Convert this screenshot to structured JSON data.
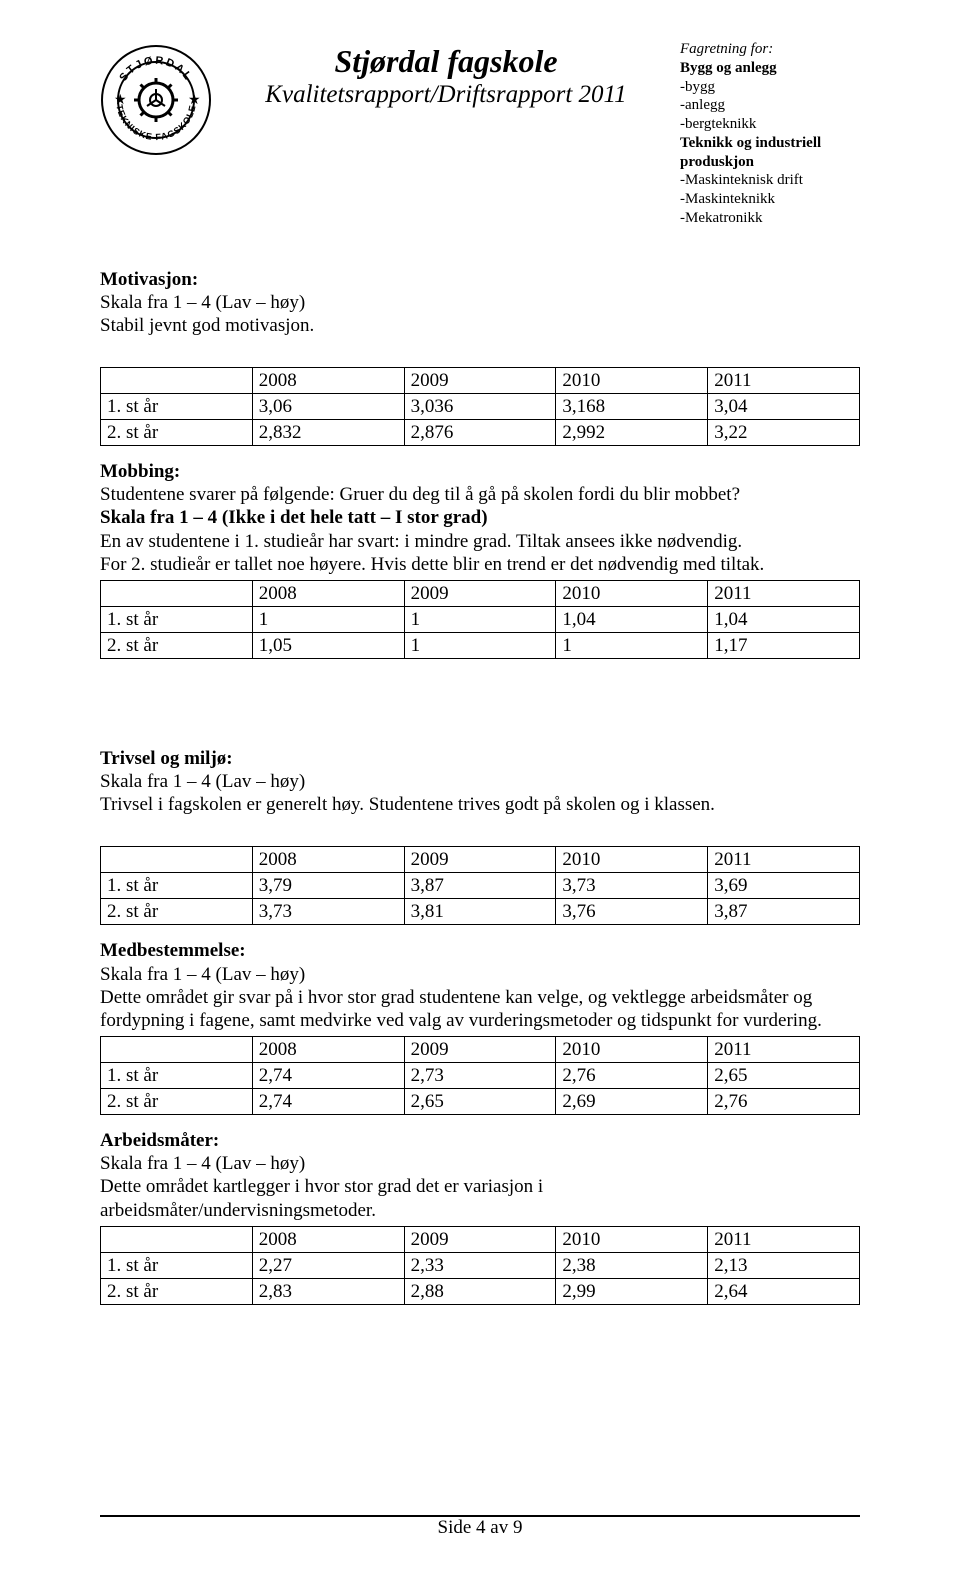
{
  "header": {
    "title": "Stjørdal fagskole",
    "subtitle": "Kvalitetsrapport/Driftsrapport 2011",
    "logo": {
      "top_text": "STJØRDAL",
      "bottom_text": "TEKNISKE FAGSKOLE"
    },
    "right": {
      "line1": "Fagretning  for:",
      "line2": "Bygg og anlegg",
      "line3": "-bygg",
      "line4": "-anlegg",
      "line5": "-bergteknikk",
      "line6": "Teknikk og industriell",
      "line7": "produskjon",
      "line8": "-Maskinteknisk drift",
      "line9": "-Maskinteknikk",
      "line10": "-Mekatronikk"
    }
  },
  "motivasjon": {
    "title": "Motivasjon:",
    "scale": "Skala fra 1 – 4 (Lav – høy)",
    "line": "Stabil jevnt god motivasjon.",
    "table": {
      "columns": [
        "",
        "2008",
        "2009",
        "2010",
        "2011"
      ],
      "rows": [
        [
          "1. st år",
          "3,06",
          "3,036",
          "3,168",
          "3,04"
        ],
        [
          "2. st år",
          "2,832",
          "2,876",
          "2,992",
          "3,22"
        ]
      ]
    }
  },
  "mobbing": {
    "title": "Mobbing:",
    "line1": "Studentene svarer på følgende: Gruer du deg til å gå på skolen fordi du blir mobbet?",
    "line2": "Skala fra 1 – 4 (Ikke i det hele tatt – I stor grad)",
    "line3": "En av studentene i 1. studieår har svart: i mindre grad. Tiltak ansees ikke nødvendig.",
    "line4": "For 2. studieår er tallet noe høyere. Hvis dette blir en trend er det nødvendig med tiltak.",
    "table": {
      "columns": [
        "",
        "2008",
        "2009",
        "2010",
        "2011"
      ],
      "rows": [
        [
          "1. st år",
          "1",
          "1",
          "1,04",
          "1,04"
        ],
        [
          "2. st år",
          "1,05",
          "1",
          "1",
          "1,17"
        ]
      ]
    }
  },
  "trivsel": {
    "title": "Trivsel og miljø:",
    "scale": "Skala fra 1 – 4 (Lav – høy)",
    "line": "Trivsel i fagskolen er generelt høy. Studentene trives godt på skolen og i klassen.",
    "table": {
      "columns": [
        "",
        "2008",
        "2009",
        "2010",
        "2011"
      ],
      "rows": [
        [
          "1. st år",
          "3,79",
          "3,87",
          "3,73",
          "3,69"
        ],
        [
          "2. st år",
          "3,73",
          "3,81",
          "3,76",
          "3,87"
        ]
      ]
    }
  },
  "medbestemmelse": {
    "title": "Medbestemmelse:",
    "scale": "Skala fra 1 – 4 (Lav – høy)",
    "line1": "Dette området gir svar på i hvor stor grad studentene kan velge, og vektlegge arbeidsmåter og fordypning i fagene, samt medvirke ved valg av vurderingsmetoder og tidspunkt for vurdering.",
    "table": {
      "columns": [
        "",
        "2008",
        "2009",
        "2010",
        "2011"
      ],
      "rows": [
        [
          "1. st år",
          "2,74",
          "2,73",
          "2,76",
          "2,65"
        ],
        [
          "2. st år",
          "2,74",
          "2,65",
          "2,69",
          "2,76"
        ]
      ]
    }
  },
  "arbeidsmater": {
    "title": "Arbeidsmåter:",
    "scale": "Skala fra 1 – 4 (Lav – høy)",
    "line1": "Dette området kartlegger i hvor stor grad det er variasjon i arbeidsmåter/undervisningsmetoder.",
    "table": {
      "columns": [
        "",
        "2008",
        "2009",
        "2010",
        "2011"
      ],
      "rows": [
        [
          "1. st år",
          "2,27",
          "2,33",
          "2,38",
          "2,13"
        ],
        [
          "2. st år",
          "2,83",
          "2,88",
          "2,99",
          "2,64"
        ]
      ]
    }
  },
  "footer": "Side 4 av 9"
}
